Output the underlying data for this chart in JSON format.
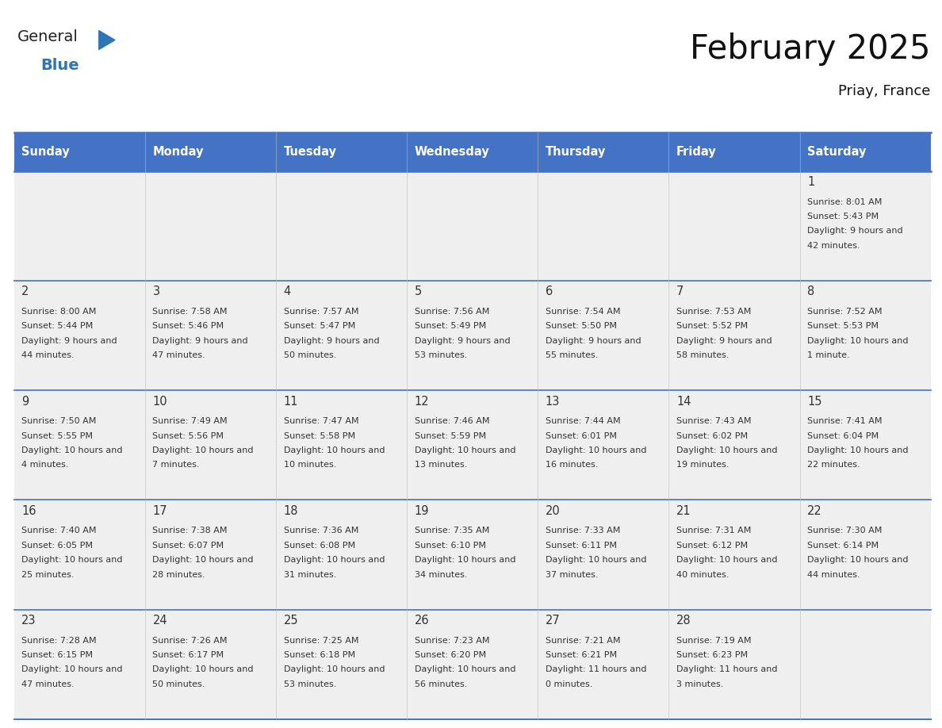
{
  "title": "February 2025",
  "subtitle": "Priay, France",
  "header_bg": "#4472C4",
  "header_text_color": "#FFFFFF",
  "day_names": [
    "Sunday",
    "Monday",
    "Tuesday",
    "Wednesday",
    "Thursday",
    "Friday",
    "Saturday"
  ],
  "cell_bg_odd": "#EFEFEF",
  "cell_bg_even": "#FFFFFF",
  "cell_border_color": "#4472C4",
  "text_color": "#333333",
  "logo_general_color": "#222222",
  "logo_blue_color": "#2E75B6",
  "logo_triangle_color": "#2E75B6",
  "days": [
    {
      "day": 1,
      "col": 6,
      "row": 0,
      "sunrise": "8:01 AM",
      "sunset": "5:43 PM",
      "daylight": "9 hours and 42 minutes"
    },
    {
      "day": 2,
      "col": 0,
      "row": 1,
      "sunrise": "8:00 AM",
      "sunset": "5:44 PM",
      "daylight": "9 hours and 44 minutes"
    },
    {
      "day": 3,
      "col": 1,
      "row": 1,
      "sunrise": "7:58 AM",
      "sunset": "5:46 PM",
      "daylight": "9 hours and 47 minutes"
    },
    {
      "day": 4,
      "col": 2,
      "row": 1,
      "sunrise": "7:57 AM",
      "sunset": "5:47 PM",
      "daylight": "9 hours and 50 minutes"
    },
    {
      "day": 5,
      "col": 3,
      "row": 1,
      "sunrise": "7:56 AM",
      "sunset": "5:49 PM",
      "daylight": "9 hours and 53 minutes"
    },
    {
      "day": 6,
      "col": 4,
      "row": 1,
      "sunrise": "7:54 AM",
      "sunset": "5:50 PM",
      "daylight": "9 hours and 55 minutes"
    },
    {
      "day": 7,
      "col": 5,
      "row": 1,
      "sunrise": "7:53 AM",
      "sunset": "5:52 PM",
      "daylight": "9 hours and 58 minutes"
    },
    {
      "day": 8,
      "col": 6,
      "row": 1,
      "sunrise": "7:52 AM",
      "sunset": "5:53 PM",
      "daylight": "10 hours and 1 minute"
    },
    {
      "day": 9,
      "col": 0,
      "row": 2,
      "sunrise": "7:50 AM",
      "sunset": "5:55 PM",
      "daylight": "10 hours and 4 minutes"
    },
    {
      "day": 10,
      "col": 1,
      "row": 2,
      "sunrise": "7:49 AM",
      "sunset": "5:56 PM",
      "daylight": "10 hours and 7 minutes"
    },
    {
      "day": 11,
      "col": 2,
      "row": 2,
      "sunrise": "7:47 AM",
      "sunset": "5:58 PM",
      "daylight": "10 hours and 10 minutes"
    },
    {
      "day": 12,
      "col": 3,
      "row": 2,
      "sunrise": "7:46 AM",
      "sunset": "5:59 PM",
      "daylight": "10 hours and 13 minutes"
    },
    {
      "day": 13,
      "col": 4,
      "row": 2,
      "sunrise": "7:44 AM",
      "sunset": "6:01 PM",
      "daylight": "10 hours and 16 minutes"
    },
    {
      "day": 14,
      "col": 5,
      "row": 2,
      "sunrise": "7:43 AM",
      "sunset": "6:02 PM",
      "daylight": "10 hours and 19 minutes"
    },
    {
      "day": 15,
      "col": 6,
      "row": 2,
      "sunrise": "7:41 AM",
      "sunset": "6:04 PM",
      "daylight": "10 hours and 22 minutes"
    },
    {
      "day": 16,
      "col": 0,
      "row": 3,
      "sunrise": "7:40 AM",
      "sunset": "6:05 PM",
      "daylight": "10 hours and 25 minutes"
    },
    {
      "day": 17,
      "col": 1,
      "row": 3,
      "sunrise": "7:38 AM",
      "sunset": "6:07 PM",
      "daylight": "10 hours and 28 minutes"
    },
    {
      "day": 18,
      "col": 2,
      "row": 3,
      "sunrise": "7:36 AM",
      "sunset": "6:08 PM",
      "daylight": "10 hours and 31 minutes"
    },
    {
      "day": 19,
      "col": 3,
      "row": 3,
      "sunrise": "7:35 AM",
      "sunset": "6:10 PM",
      "daylight": "10 hours and 34 minutes"
    },
    {
      "day": 20,
      "col": 4,
      "row": 3,
      "sunrise": "7:33 AM",
      "sunset": "6:11 PM",
      "daylight": "10 hours and 37 minutes"
    },
    {
      "day": 21,
      "col": 5,
      "row": 3,
      "sunrise": "7:31 AM",
      "sunset": "6:12 PM",
      "daylight": "10 hours and 40 minutes"
    },
    {
      "day": 22,
      "col": 6,
      "row": 3,
      "sunrise": "7:30 AM",
      "sunset": "6:14 PM",
      "daylight": "10 hours and 44 minutes"
    },
    {
      "day": 23,
      "col": 0,
      "row": 4,
      "sunrise": "7:28 AM",
      "sunset": "6:15 PM",
      "daylight": "10 hours and 47 minutes"
    },
    {
      "day": 24,
      "col": 1,
      "row": 4,
      "sunrise": "7:26 AM",
      "sunset": "6:17 PM",
      "daylight": "10 hours and 50 minutes"
    },
    {
      "day": 25,
      "col": 2,
      "row": 4,
      "sunrise": "7:25 AM",
      "sunset": "6:18 PM",
      "daylight": "10 hours and 53 minutes"
    },
    {
      "day": 26,
      "col": 3,
      "row": 4,
      "sunrise": "7:23 AM",
      "sunset": "6:20 PM",
      "daylight": "10 hours and 56 minutes"
    },
    {
      "day": 27,
      "col": 4,
      "row": 4,
      "sunrise": "7:21 AM",
      "sunset": "6:21 PM",
      "daylight": "11 hours and 0 minutes"
    },
    {
      "day": 28,
      "col": 5,
      "row": 4,
      "sunrise": "7:19 AM",
      "sunset": "6:23 PM",
      "daylight": "11 hours and 3 minutes"
    }
  ]
}
